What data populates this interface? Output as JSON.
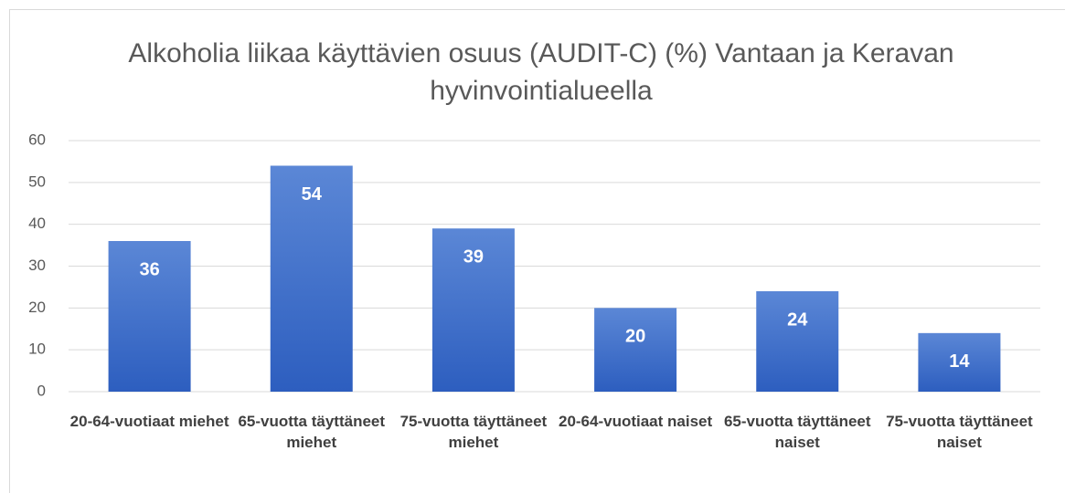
{
  "chart_data": {
    "type": "bar",
    "title": "Alkoholia liikaa käyttävien osuus (AUDIT-C) (%)  Vantaan ja Keravan hyvinvointialueella",
    "categories": [
      "20-64-vuotiaat miehet",
      "65-vuotta täyttäneet miehet",
      "75-vuotta täyttäneet miehet",
      "20-64-vuotiaat naiset",
      "65-vuotta täyttäneet naiset",
      "75-vuotta täyttäneet naiset"
    ],
    "values": [
      36,
      54,
      39,
      20,
      24,
      14
    ],
    "color": "#4472c4",
    "ylim": [
      0,
      60
    ],
    "yticks": [
      0,
      10,
      20,
      30,
      40,
      50,
      60
    ],
    "grid": true
  }
}
